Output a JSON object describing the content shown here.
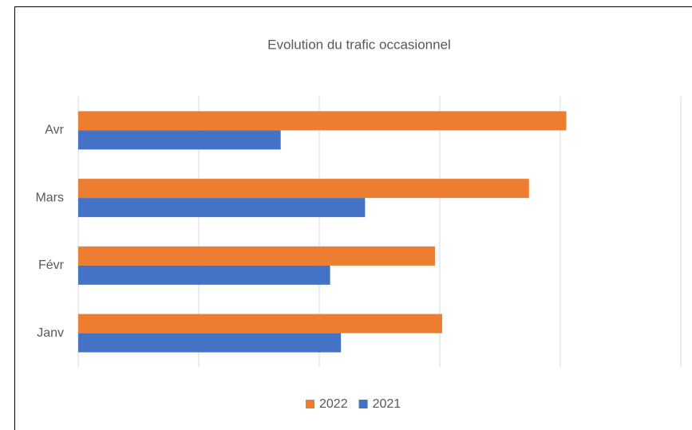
{
  "chart_data": {
    "type": "hbar",
    "title": "Evolution du trafic occasionnel",
    "categories": [
      "Janv",
      "Févr",
      "Mars",
      "Avr"
    ],
    "series": [
      {
        "name": "2022",
        "color": "#ed7d31",
        "values": [
          3.02,
          2.96,
          3.74,
          4.05
        ]
      },
      {
        "name": "2021",
        "color": "#4472c4",
        "values": [
          2.18,
          2.09,
          2.38,
          1.68
        ]
      }
    ],
    "xlim": [
      0,
      5
    ],
    "xticks": [
      0,
      1,
      2,
      3,
      4,
      5
    ],
    "grid": true,
    "legend": "bottom"
  }
}
